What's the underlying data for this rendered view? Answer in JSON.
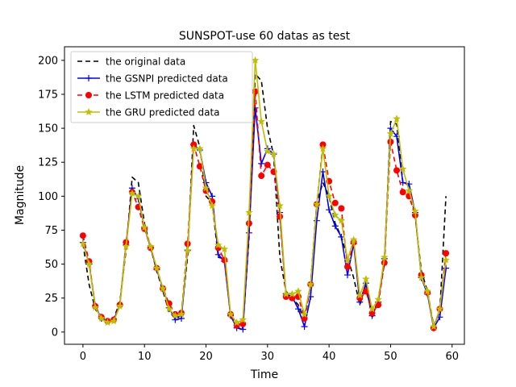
{
  "chart_data": {
    "type": "line",
    "title": "SUNSPOT-use 60 datas as test",
    "xlabel": "Time",
    "ylabel": "Magnitude",
    "xlim": [
      -3,
      62
    ],
    "ylim": [
      -9,
      210
    ],
    "xticks": [
      0,
      10,
      20,
      30,
      40,
      50,
      60
    ],
    "yticks": [
      0,
      25,
      50,
      75,
      100,
      125,
      150,
      175,
      200
    ],
    "legend": "top-left",
    "x": [
      0,
      1,
      2,
      3,
      4,
      5,
      6,
      7,
      8,
      9,
      10,
      11,
      12,
      13,
      14,
      15,
      16,
      17,
      18,
      19,
      20,
      21,
      22,
      23,
      24,
      25,
      26,
      27,
      28,
      29,
      30,
      31,
      32,
      33,
      34,
      35,
      36,
      37,
      38,
      39,
      40,
      41,
      42,
      43,
      44,
      45,
      46,
      47,
      48,
      49,
      50,
      51,
      52,
      53,
      54,
      55,
      56,
      57,
      58,
      59
    ],
    "series": [
      {
        "name": "the original data",
        "color": "#000000",
        "dash": "6,4",
        "marker": "none",
        "values": [
          65,
          35,
          17,
          10,
          8,
          10,
          22,
          60,
          114,
          110,
          80,
          62,
          45,
          30,
          15,
          10,
          12,
          55,
          152,
          136,
          100,
          95,
          55,
          54,
          12,
          5,
          3,
          70,
          190,
          185,
          150,
          130,
          55,
          30,
          25,
          20,
          8,
          35,
          95,
          110,
          100,
          80,
          70,
          55,
          40,
          20,
          35,
          10,
          25,
          50,
          155,
          153,
          110,
          108,
          85,
          45,
          30,
          5,
          15,
          100
        ]
      },
      {
        "name": "the GSNPI predicted data",
        "color": "#0000ff",
        "dash": "",
        "marker": "plus",
        "values": [
          66,
          50,
          19,
          10,
          8,
          9,
          20,
          64,
          106,
          98,
          77,
          62,
          46,
          32,
          18,
          9,
          10,
          60,
          138,
          134,
          110,
          100,
          57,
          52,
          12,
          3,
          2,
          73,
          165,
          124,
          135,
          131,
          88,
          28,
          26,
          17,
          4,
          26,
          82,
          118,
          90,
          78,
          70,
          42,
          65,
          22,
          36,
          12,
          22,
          54,
          150,
          144,
          110,
          109,
          88,
          40,
          28,
          3,
          11,
          47
        ]
      },
      {
        "name": "the LSTM predicted data",
        "color": "#ff0000",
        "dash": "6,4",
        "marker": "circle",
        "values": [
          71,
          52,
          19,
          11,
          8,
          9,
          20,
          66,
          103,
          92,
          76,
          62,
          47,
          32,
          21,
          13,
          14,
          65,
          138,
          122,
          104,
          96,
          62,
          53,
          13,
          5,
          6,
          80,
          177,
          115,
          123,
          118,
          85,
          26,
          25,
          26,
          10,
          35,
          94,
          138,
          111,
          95,
          91,
          48,
          66,
          25,
          30,
          14,
          20,
          51,
          140,
          119,
          103,
          100,
          86,
          42,
          29,
          3,
          17,
          58
        ]
      },
      {
        "name": "the GRU predicted data",
        "color": "#bfbf00",
        "dash": "",
        "marker": "star",
        "values": [
          65,
          50,
          18,
          10,
          7,
          8,
          19,
          63,
          102,
          100,
          77,
          63,
          47,
          32,
          17,
          12,
          13,
          60,
          135,
          135,
          106,
          93,
          64,
          61,
          13,
          7,
          9,
          88,
          200,
          155,
          133,
          131,
          93,
          28,
          28,
          30,
          13,
          35,
          94,
          135,
          100,
          86,
          82,
          53,
          68,
          27,
          39,
          17,
          24,
          55,
          146,
          157,
          120,
          104,
          89,
          40,
          30,
          4,
          17,
          53
        ]
      }
    ]
  }
}
